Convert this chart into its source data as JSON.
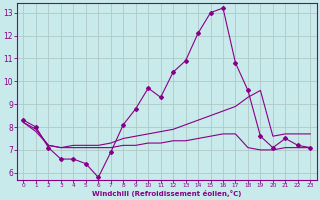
{
  "bg_color": "#c8eaea",
  "grid_color": "#b0c8c8",
  "line_color": "#880088",
  "xlabel": "Windchill (Refroidissement éolien,°C)",
  "xlabel_color": "#880088",
  "tick_color": "#880088",
  "ylim": [
    5.7,
    13.4
  ],
  "xlim": [
    -0.5,
    23.5
  ],
  "yticks": [
    6,
    7,
    8,
    9,
    10,
    11,
    12,
    13
  ],
  "xticks": [
    0,
    1,
    2,
    3,
    4,
    5,
    6,
    7,
    8,
    9,
    10,
    11,
    12,
    13,
    14,
    15,
    16,
    17,
    18,
    19,
    20,
    21,
    22,
    23
  ],
  "series1_x": [
    0,
    1,
    2,
    3,
    4,
    5,
    6,
    7,
    8,
    9,
    10,
    11,
    12,
    13,
    14,
    15,
    16,
    17,
    18,
    19,
    20,
    21,
    22,
    23
  ],
  "series1_y": [
    8.3,
    8.0,
    7.1,
    6.6,
    6.6,
    6.4,
    5.8,
    6.9,
    8.1,
    8.8,
    9.7,
    9.3,
    10.4,
    10.9,
    12.1,
    13.0,
    13.2,
    10.8,
    9.6,
    7.6,
    7.1,
    7.5,
    7.2,
    7.1
  ],
  "series2_x": [
    0,
    1,
    2,
    3,
    4,
    5,
    6,
    7,
    8,
    9,
    10,
    11,
    12,
    13,
    14,
    15,
    16,
    17,
    18,
    19,
    20,
    21,
    22,
    23
  ],
  "series2_y": [
    8.2,
    7.9,
    7.2,
    7.1,
    7.2,
    7.2,
    7.2,
    7.3,
    7.5,
    7.6,
    7.7,
    7.8,
    7.9,
    8.1,
    8.3,
    8.5,
    8.7,
    8.9,
    9.3,
    9.6,
    7.6,
    7.7,
    7.7,
    7.7
  ],
  "series3_x": [
    0,
    1,
    2,
    3,
    4,
    5,
    6,
    7,
    8,
    9,
    10,
    11,
    12,
    13,
    14,
    15,
    16,
    17,
    18,
    19,
    20,
    21,
    22,
    23
  ],
  "series3_y": [
    8.2,
    7.8,
    7.2,
    7.1,
    7.1,
    7.1,
    7.1,
    7.1,
    7.2,
    7.2,
    7.3,
    7.3,
    7.4,
    7.4,
    7.5,
    7.6,
    7.7,
    7.7,
    7.1,
    7.0,
    7.0,
    7.1,
    7.1,
    7.1
  ]
}
